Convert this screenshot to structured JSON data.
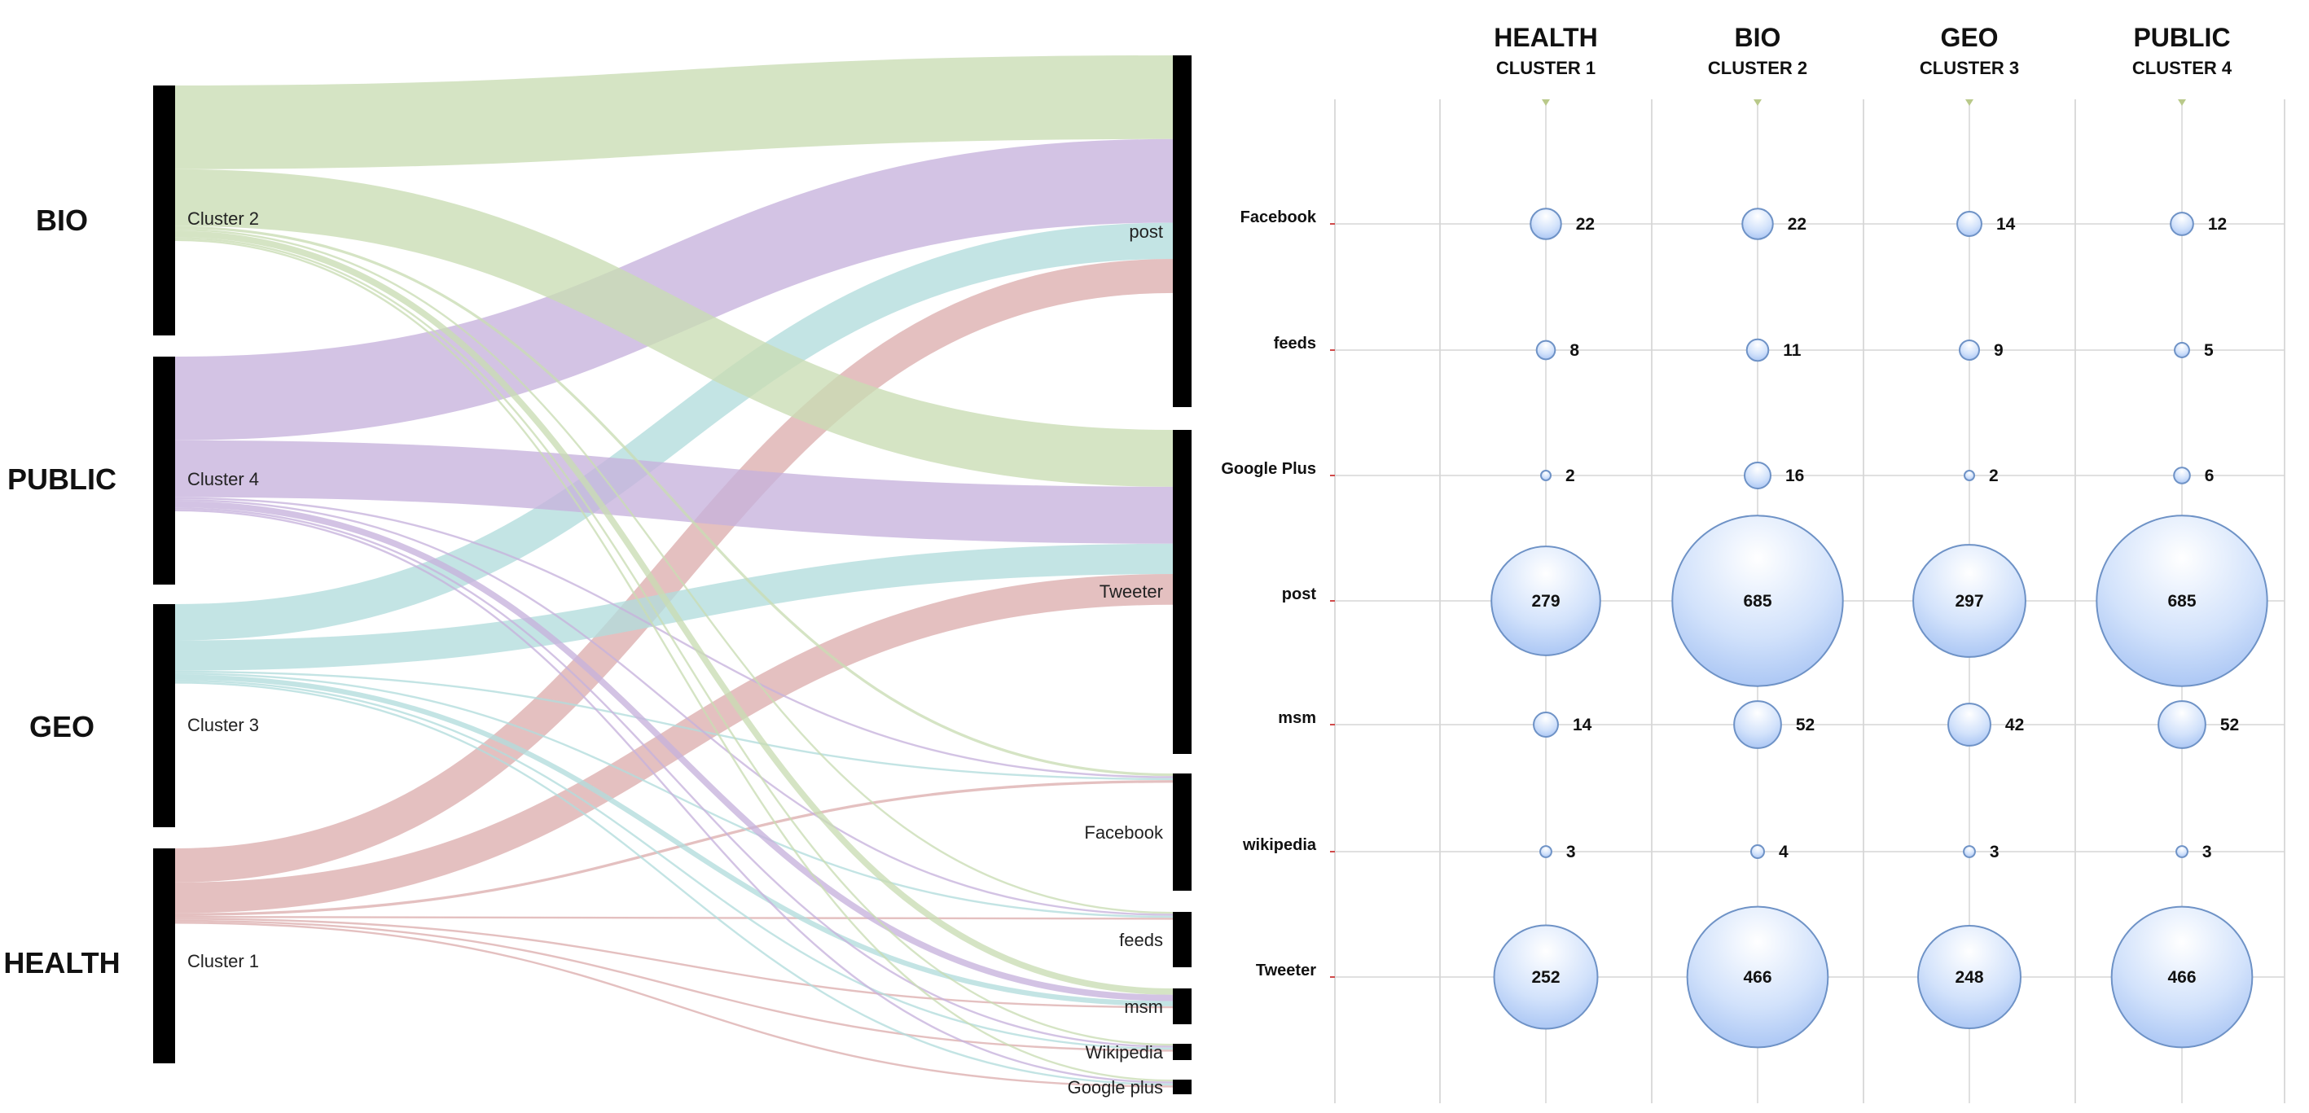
{
  "chart_data": [
    {
      "type": "sankey",
      "groups": [
        {
          "label": "BIO",
          "cluster": "Cluster 2"
        },
        {
          "label": "PUBLIC",
          "cluster": "Cluster 4"
        },
        {
          "label": "GEO",
          "cluster": "Cluster 3"
        },
        {
          "label": "HEALTH",
          "cluster": "Cluster 1"
        }
      ],
      "targets": [
        "post",
        "Tweeter",
        "Facebook",
        "feeds",
        "msm",
        "Wikipedia",
        "Google plus"
      ],
      "colors": {
        "Cluster 2": "#c9dcb3",
        "Cluster 4": "#c7b2dc",
        "Cluster 3": "#b2dcdd",
        "Cluster 1": "#dcaeae",
        "node": "#000000"
      },
      "flows": [
        {
          "source": "Cluster 2",
          "target": "post",
          "value": 685
        },
        {
          "source": "Cluster 2",
          "target": "Tweeter",
          "value": 466
        },
        {
          "source": "Cluster 2",
          "target": "Facebook",
          "value": 22
        },
        {
          "source": "Cluster 2",
          "target": "feeds",
          "value": 11
        },
        {
          "source": "Cluster 2",
          "target": "msm",
          "value": 52
        },
        {
          "source": "Cluster 2",
          "target": "Wikipedia",
          "value": 4
        },
        {
          "source": "Cluster 2",
          "target": "Google plus",
          "value": 16
        },
        {
          "source": "Cluster 4",
          "target": "post",
          "value": 685
        },
        {
          "source": "Cluster 4",
          "target": "Tweeter",
          "value": 466
        },
        {
          "source": "Cluster 4",
          "target": "Facebook",
          "value": 12
        },
        {
          "source": "Cluster 4",
          "target": "feeds",
          "value": 5
        },
        {
          "source": "Cluster 4",
          "target": "msm",
          "value": 52
        },
        {
          "source": "Cluster 4",
          "target": "Wikipedia",
          "value": 3
        },
        {
          "source": "Cluster 4",
          "target": "Google plus",
          "value": 6
        },
        {
          "source": "Cluster 3",
          "target": "post",
          "value": 297
        },
        {
          "source": "Cluster 3",
          "target": "Tweeter",
          "value": 248
        },
        {
          "source": "Cluster 3",
          "target": "Facebook",
          "value": 14
        },
        {
          "source": "Cluster 3",
          "target": "feeds",
          "value": 9
        },
        {
          "source": "Cluster 3",
          "target": "msm",
          "value": 42
        },
        {
          "source": "Cluster 3",
          "target": "Wikipedia",
          "value": 3
        },
        {
          "source": "Cluster 3",
          "target": "Google plus",
          "value": 2
        },
        {
          "source": "Cluster 1",
          "target": "post",
          "value": 279
        },
        {
          "source": "Cluster 1",
          "target": "Tweeter",
          "value": 252
        },
        {
          "source": "Cluster 1",
          "target": "Facebook",
          "value": 22
        },
        {
          "source": "Cluster 1",
          "target": "feeds",
          "value": 8
        },
        {
          "source": "Cluster 1",
          "target": "msm",
          "value": 14
        },
        {
          "source": "Cluster 1",
          "target": "Wikipedia",
          "value": 3
        },
        {
          "source": "Cluster 1",
          "target": "Google plus",
          "value": 2
        }
      ]
    },
    {
      "type": "bubble",
      "columns": [
        {
          "title": "HEALTH",
          "subtitle": "CLUSTER 1"
        },
        {
          "title": "BIO",
          "subtitle": "CLUSTER 2"
        },
        {
          "title": "GEO",
          "subtitle": "CLUSTER 3"
        },
        {
          "title": "PUBLIC",
          "subtitle": "CLUSTER 4"
        }
      ],
      "rows": [
        "Facebook",
        "feeds",
        "Google Plus",
        "post",
        "msm",
        "wikipedia",
        "Tweeter"
      ],
      "values": [
        [
          22,
          22,
          14,
          12
        ],
        [
          8,
          11,
          9,
          5
        ],
        [
          2,
          16,
          2,
          6
        ],
        [
          279,
          685,
          297,
          685
        ],
        [
          14,
          52,
          42,
          52
        ],
        [
          3,
          4,
          3,
          3
        ],
        [
          252,
          466,
          248,
          466
        ]
      ],
      "bubble_color": "#aac6f4",
      "grid": true
    }
  ]
}
